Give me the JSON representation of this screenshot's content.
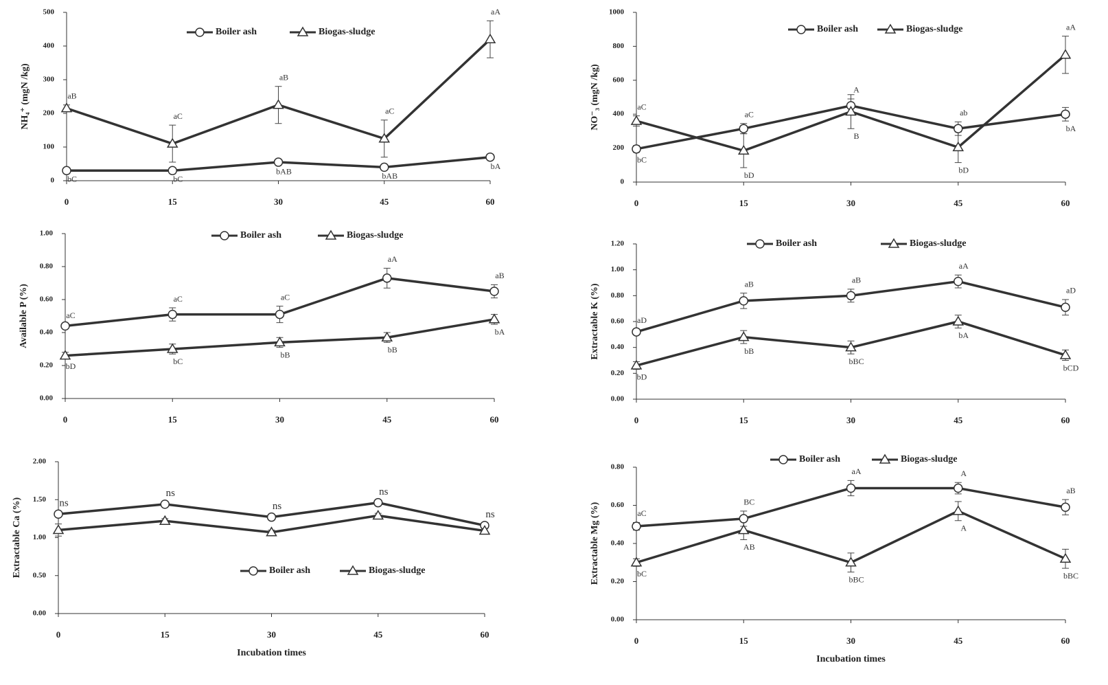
{
  "chart_data": [
    {
      "type": "line",
      "ylabel": "NH₄⁺ (mgN /kg)",
      "x": [
        0,
        15,
        30,
        45,
        60
      ],
      "xlim": [
        0,
        60
      ],
      "xticks": [
        0,
        15,
        30,
        45,
        60
      ],
      "ylim": [
        0,
        500
      ],
      "yticks": [
        0,
        100,
        200,
        300,
        400,
        500
      ],
      "series": [
        {
          "name": "Boiler ash",
          "color": "#333333",
          "marker": "circle",
          "values": [
            30,
            30,
            55,
            40,
            70
          ],
          "errors": [
            3,
            3,
            5,
            4,
            5
          ],
          "annotations": [
            "bC",
            "bC",
            "bAB",
            "bAB",
            "bA"
          ]
        },
        {
          "name": "Biogas-sludge",
          "color": "#333333",
          "marker": "triangle",
          "values": [
            215,
            110,
            225,
            125,
            420
          ],
          "errors": [
            10,
            55,
            55,
            55,
            55
          ],
          "annotations": [
            "aB",
            "aC",
            "aB",
            "aC",
            "aA"
          ]
        }
      ]
    },
    {
      "type": "line",
      "ylabel": "NO⁻₃ (mgN /kg)",
      "x": [
        0,
        15,
        30,
        45,
        60
      ],
      "xlim": [
        0,
        60
      ],
      "xticks": [
        0,
        15,
        30,
        45,
        60
      ],
      "ylim": [
        0,
        1000
      ],
      "yticks": [
        0,
        200,
        400,
        600,
        800,
        1000
      ],
      "series": [
        {
          "name": "Boiler ash",
          "color": "#333333",
          "marker": "circle",
          "values": [
            195,
            315,
            450,
            315,
            400
          ],
          "errors": [
            20,
            30,
            40,
            40,
            40
          ],
          "annotations": [
            "bC",
            "aC",
            "A",
            "ab",
            "bA"
          ]
        },
        {
          "name": "Biogas-sludge",
          "color": "#333333",
          "marker": "triangle",
          "values": [
            360,
            185,
            415,
            205,
            750
          ],
          "errors": [
            30,
            100,
            100,
            90,
            110
          ],
          "annotations": [
            "aC",
            "bD",
            "B",
            "bD",
            "aA"
          ]
        }
      ]
    },
    {
      "type": "line",
      "ylabel": "Available P (%)",
      "x": [
        0,
        15,
        30,
        45,
        60
      ],
      "xlim": [
        0,
        60
      ],
      "xticks": [
        0,
        15,
        30,
        45,
        60
      ],
      "ylim": [
        0,
        1
      ],
      "yticks": [
        {
          "value": 0,
          "label": "0.00"
        },
        {
          "value": 0.2,
          "label": "0.20"
        },
        {
          "value": 0.4,
          "label": "0.40"
        },
        {
          "value": 0.6,
          "label": "0.60"
        },
        {
          "value": 0.8,
          "label": "0.80"
        },
        {
          "value": 1,
          "label": "1.00"
        }
      ],
      "series": [
        {
          "name": "Boiler ash",
          "color": "#333333",
          "marker": "circle",
          "values": [
            0.44,
            0.51,
            0.51,
            0.73,
            0.65
          ],
          "errors": [
            0.01,
            0.04,
            0.05,
            0.06,
            0.04
          ],
          "annotations": [
            "aC",
            "aC",
            "aC",
            "aA",
            "aB"
          ]
        },
        {
          "name": "Biogas-sludge",
          "color": "#333333",
          "marker": "triangle",
          "values": [
            0.26,
            0.3,
            0.34,
            0.37,
            0.48
          ],
          "errors": [
            0.02,
            0.03,
            0.03,
            0.03,
            0.03
          ],
          "annotations": [
            "bD",
            "bC",
            "bB",
            "bB",
            "bA"
          ]
        }
      ]
    },
    {
      "type": "line",
      "ylabel": "Extractable K (%)",
      "x": [
        0,
        15,
        30,
        45,
        60
      ],
      "xlim": [
        0,
        60
      ],
      "xticks": [
        0,
        15,
        30,
        45,
        60
      ],
      "ylim": [
        0,
        1.2
      ],
      "yticks": [
        {
          "value": 0,
          "label": "0.00"
        },
        {
          "value": 0.2,
          "label": "0.20"
        },
        {
          "value": 0.4,
          "label": "0.40"
        },
        {
          "value": 0.6,
          "label": "0.60"
        },
        {
          "value": 0.8,
          "label": "0.80"
        },
        {
          "value": 1,
          "label": "1.00"
        },
        {
          "value": 1.2,
          "label": "1.20"
        }
      ],
      "series": [
        {
          "name": "Boiler ash",
          "color": "#333333",
          "marker": "circle",
          "values": [
            0.52,
            0.76,
            0.8,
            0.91,
            0.71
          ],
          "errors": [
            0.02,
            0.06,
            0.05,
            0.05,
            0.06
          ],
          "annotations": [
            "aD",
            "aB",
            "aB",
            "aA",
            "aD"
          ]
        },
        {
          "name": "Biogas-sludge",
          "color": "#333333",
          "marker": "triangle",
          "values": [
            0.26,
            0.48,
            0.4,
            0.6,
            0.34
          ],
          "errors": [
            0.03,
            0.05,
            0.05,
            0.05,
            0.04
          ],
          "annotations": [
            "bD",
            "bB",
            "bBC",
            "bA",
            "bCD"
          ]
        }
      ]
    },
    {
      "type": "line",
      "ylabel": "Extractable Ca (%)",
      "xlabel": "Incubation times",
      "x": [
        0,
        15,
        30,
        45,
        60
      ],
      "xlim": [
        0,
        60
      ],
      "xticks": [
        0,
        15,
        30,
        45,
        60
      ],
      "ylim": [
        0,
        2
      ],
      "yticks": [
        {
          "value": 0,
          "label": "0.00"
        },
        {
          "value": 0.5,
          "label": "0.50"
        },
        {
          "value": 1,
          "label": "1.00"
        },
        {
          "value": 1.5,
          "label": "1.50"
        },
        {
          "value": 2,
          "label": "2.00"
        }
      ],
      "series": [
        {
          "name": "Boiler ash",
          "color": "#333333",
          "marker": "circle",
          "values": [
            1.31,
            1.44,
            1.27,
            1.46,
            1.16
          ],
          "errors": [
            0.03,
            0.03,
            0.03,
            0.03,
            0.03
          ],
          "annotations": [
            "ns",
            "ns",
            "ns",
            "ns",
            "ns"
          ]
        },
        {
          "name": "Biogas-sludge",
          "color": "#333333",
          "marker": "triangle",
          "values": [
            1.1,
            1.22,
            1.07,
            1.29,
            1.09
          ],
          "errors": [
            0.08,
            0.03,
            0.03,
            0.03,
            0.03
          ]
        }
      ]
    },
    {
      "type": "line",
      "ylabel": "Extractable Mg (%)",
      "xlabel": "Incubation times",
      "x": [
        0,
        15,
        30,
        45,
        60
      ],
      "xlim": [
        0,
        60
      ],
      "xticks": [
        0,
        15,
        30,
        45,
        60
      ],
      "ylim": [
        0,
        0.8
      ],
      "yticks": [
        {
          "value": 0,
          "label": "0.00"
        },
        {
          "value": 0.2,
          "label": "0.20"
        },
        {
          "value": 0.4,
          "label": "0.40"
        },
        {
          "value": 0.6,
          "label": "0.60"
        },
        {
          "value": 0.8,
          "label": "0.80"
        }
      ],
      "series": [
        {
          "name": "Boiler ash",
          "color": "#333333",
          "marker": "circle",
          "values": [
            0.49,
            0.53,
            0.69,
            0.69,
            0.59
          ],
          "errors": [
            0.02,
            0.04,
            0.04,
            0.03,
            0.04
          ],
          "annotations": [
            "aC",
            "BC",
            "aA",
            "A",
            "aB"
          ]
        },
        {
          "name": "Biogas-sludge",
          "color": "#333333",
          "marker": "triangle",
          "values": [
            0.3,
            0.47,
            0.3,
            0.57,
            0.32
          ],
          "errors": [
            0.02,
            0.05,
            0.05,
            0.05,
            0.05
          ],
          "annotations": [
            "bC",
            "AB",
            "bBC",
            "A",
            "bBC"
          ]
        }
      ]
    }
  ]
}
